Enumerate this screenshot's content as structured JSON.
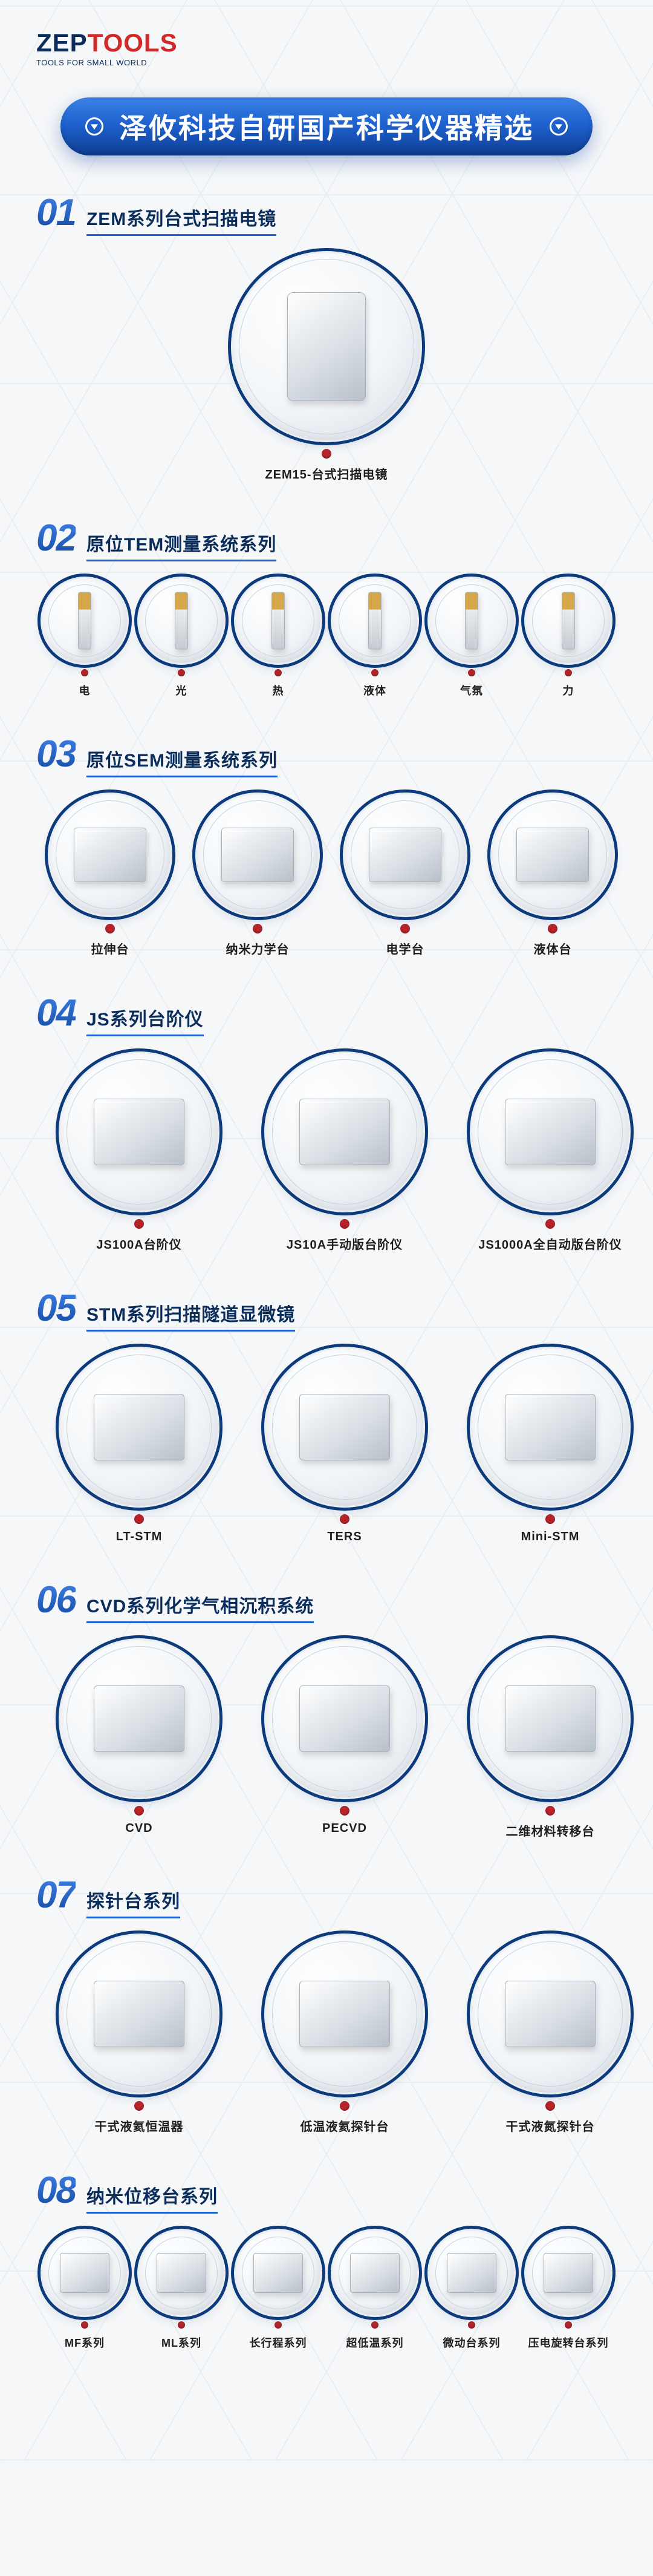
{
  "brand": {
    "name_a": "ZEP",
    "name_b": "TOOLS",
    "tagline": "TOOLS FOR SMALL WORLD",
    "color_a": "#0a2d5c",
    "color_b": "#d02a2a"
  },
  "hero": {
    "text": "泽攸科技自研国产科学仪器精选",
    "bg_gradient": [
      "#3b82e6",
      "#1f62cf",
      "#0e3f94"
    ],
    "text_color": "#ffffff",
    "fontsize": 46
  },
  "style": {
    "ring_color": "#0c3a7a",
    "dot_color": "#b9252a",
    "section_num_gradient": [
      "#3d7ee3",
      "#154ca3"
    ],
    "section_title_color": "#0a2d5c",
    "underline_color": "#1f62cf",
    "label_color": "#1e1e1e",
    "background_color": "#f4f6f8",
    "hex_line_color": "#d9e0e6",
    "label_fontsize": 20,
    "section_title_fontsize": 30,
    "section_num_fontsize": 62
  },
  "sections": [
    {
      "num": "01",
      "title": "ZEM系列台式扫描电镜",
      "size": "xl",
      "layout": "center",
      "items": [
        {
          "label": "ZEM15-台式扫描电镜"
        }
      ]
    },
    {
      "num": "02",
      "title": "原位TEM测量系统系列",
      "size": "s",
      "layout": "around",
      "items": [
        {
          "label": "电"
        },
        {
          "label": "光"
        },
        {
          "label": "热"
        },
        {
          "label": "液体"
        },
        {
          "label": "气氛"
        },
        {
          "label": "力"
        }
      ]
    },
    {
      "num": "03",
      "title": "原位SEM测量系统系列",
      "size": "m",
      "layout": "around",
      "items": [
        {
          "label": "拉伸台"
        },
        {
          "label": "纳米力学台"
        },
        {
          "label": "电学台"
        },
        {
          "label": "液体台"
        }
      ]
    },
    {
      "num": "04",
      "title": "JS系列台阶仪",
      "size": "l",
      "layout": "around",
      "items": [
        {
          "label": "JS100A台阶仪"
        },
        {
          "label": "JS10A手动版台阶仪"
        },
        {
          "label": "JS1000A全自动版台阶仪"
        }
      ]
    },
    {
      "num": "05",
      "title": "STM系列扫描隧道显微镜",
      "size": "l",
      "layout": "around",
      "items": [
        {
          "label": "LT-STM"
        },
        {
          "label": "TERS"
        },
        {
          "label": "Mini-STM"
        }
      ]
    },
    {
      "num": "06",
      "title": "CVD系列化学气相沉积系统",
      "size": "l",
      "layout": "around",
      "items": [
        {
          "label": "CVD"
        },
        {
          "label": "PECVD"
        },
        {
          "label": "二维材料转移台"
        }
      ]
    },
    {
      "num": "07",
      "title": "探针台系列",
      "size": "l",
      "layout": "around",
      "items": [
        {
          "label": "干式液氦恒温器"
        },
        {
          "label": "低温液氦探针台"
        },
        {
          "label": "干式液氮探针台"
        }
      ]
    },
    {
      "num": "08",
      "title": "纳米位移台系列",
      "size": "s2",
      "layout": "around",
      "items": [
        {
          "label": "MF系列"
        },
        {
          "label": "ML系列"
        },
        {
          "label": "长行程系列"
        },
        {
          "label": "超低温系列"
        },
        {
          "label": "微动台系列"
        },
        {
          "label": "压电旋转台系列"
        }
      ]
    }
  ]
}
